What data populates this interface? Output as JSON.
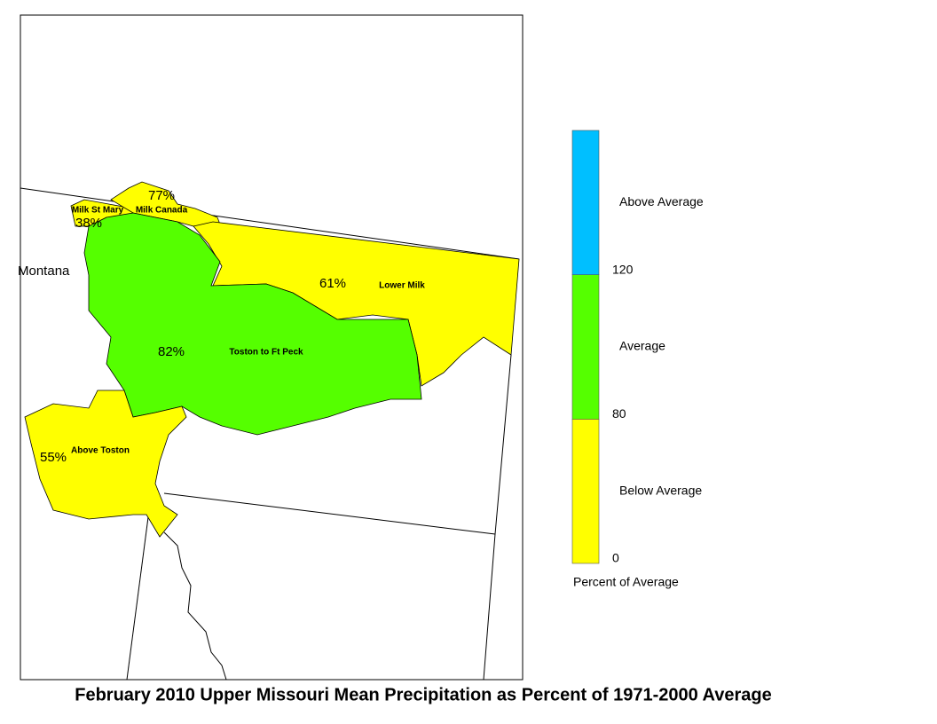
{
  "title": "February 2010 Upper Missouri Mean Precipitation as Percent of 1971-2000 Average",
  "map": {
    "state_label": "Montana",
    "basins": [
      {
        "name": "Milk St Mary",
        "percent": "38%",
        "color": "#ffff00"
      },
      {
        "name": "Milk Canada",
        "percent": "77%",
        "color": "#ffff00"
      },
      {
        "name": "Lower Milk",
        "percent": "61%",
        "color": "#ffff00"
      },
      {
        "name": "Toston to Ft Peck",
        "percent": "82%",
        "color": "#55ff00"
      },
      {
        "name": "Above Toston",
        "percent": "55%",
        "color": "#ffff00"
      }
    ]
  },
  "legend": {
    "title": "Percent of Average",
    "classes": [
      {
        "label": "Below Average",
        "color": "#ffff00"
      },
      {
        "label": "Average",
        "color": "#55ff00"
      },
      {
        "label": "Above Average",
        "color": "#00bfff"
      }
    ],
    "breaks": [
      "0",
      "80",
      "120"
    ]
  }
}
